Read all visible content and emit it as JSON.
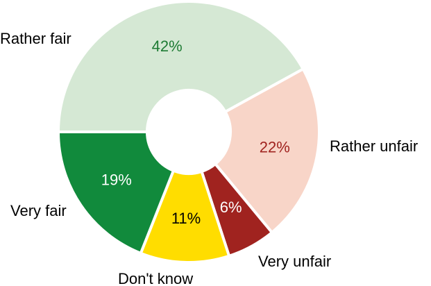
{
  "chart_data": {
    "type": "donut",
    "categories": [
      "Rather fair",
      "Rather unfair",
      "Very unfair",
      "Don't know",
      "Very fair"
    ],
    "values": [
      42,
      22,
      6,
      11,
      19
    ],
    "value_labels": [
      "42%",
      "22%",
      "6%",
      "11%",
      "19%"
    ],
    "colors": [
      "#d5e8d4",
      "#f8d5c8",
      "#a0231f",
      "#ffdd00",
      "#118a3c"
    ],
    "label_colors": [
      "#1e7b34",
      "#a0231f",
      "#ffffff",
      "#000000",
      "#ffffff"
    ]
  }
}
